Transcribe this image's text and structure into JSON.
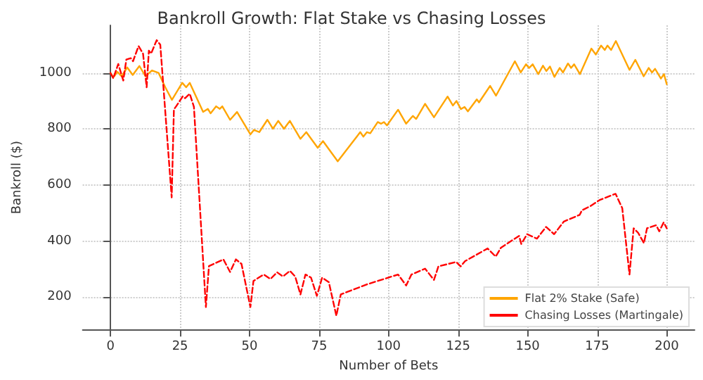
{
  "chart_data": {
    "type": "line",
    "title": "Bankroll Growth: Flat Stake vs Chasing Losses",
    "xlabel": "Number of Bets",
    "ylabel": "Bankroll ($)",
    "xlim": [
      -10,
      210
    ],
    "xticks": [
      0,
      25,
      50,
      75,
      100,
      125,
      150,
      175,
      200
    ],
    "ylim": [
      85,
      1170
    ],
    "yticks": [
      200,
      400,
      600,
      800,
      1000
    ],
    "grid": true,
    "legend": "bottom right",
    "marker": "none",
    "series": [
      {
        "name": "Flat 2% Stake (Safe)",
        "color": "#ffa500",
        "line_style": "solid",
        "x": [
          0,
          1,
          2.5,
          4,
          6,
          8,
          10.4,
          12.6,
          14.9,
          17.3,
          19.7,
          22.1,
          25.8,
          27.2,
          28.5,
          33.3,
          35,
          36,
          38,
          39.3,
          40.2,
          43,
          45.5,
          50.3,
          51.6,
          53.5,
          56.4,
          58.4,
          60.3,
          62.4,
          64.5,
          68.3,
          70.4,
          74.5,
          76.4,
          81.7,
          89.8,
          90.9,
          92.2,
          93.4,
          96.1,
          97.3,
          98.3,
          99.4,
          103.4,
          106.3,
          108.7,
          109.9,
          113.1,
          116.3,
          121.2,
          123.1,
          124.4,
          126,
          127.3,
          128.5,
          131.7,
          132.5,
          136.5,
          138.6,
          145.4,
          147.5,
          149.4,
          150.5,
          151.8,
          153.8,
          155.5,
          156.7,
          158,
          159.6,
          161.5,
          162.7,
          164.5,
          165.6,
          166.7,
          168.8,
          172.9,
          174.5,
          176.4,
          177.7,
          178.7,
          180,
          181.7,
          186.6,
          188.7,
          191.7,
          193.5,
          194.7,
          195.8,
          197.9,
          199,
          200
        ],
        "values": [
          1000,
          984,
          1004,
          988,
          1020,
          993,
          1025,
          988,
          1009,
          1000,
          949,
          904,
          965,
          949,
          965,
          861,
          872,
          856,
          881,
          872,
          881,
          833,
          861,
          781,
          797,
          789,
          833,
          801,
          829,
          801,
          829,
          765,
          789,
          733,
          757,
          685,
          789,
          773,
          789,
          785,
          825,
          819,
          825,
          813,
          869,
          819,
          847,
          836,
          890,
          842,
          916,
          884,
          900,
          871,
          879,
          863,
          906,
          895,
          954,
          919,
          1042,
          1002,
          1031,
          1018,
          1031,
          996,
          1026,
          1007,
          1023,
          986,
          1018,
          1002,
          1034,
          1018,
          1031,
          996,
          1087,
          1066,
          1098,
          1082,
          1098,
          1082,
          1114,
          1011,
          1047,
          988,
          1018,
          1002,
          1015,
          980,
          996,
          960
        ]
      },
      {
        "name": "Chasing Losses (Martingale)",
        "color": "#ff0000",
        "line_style": "dashed",
        "x": [
          0,
          1,
          2.8,
          4.6,
          5.7,
          7.3,
          8.1,
          10.1,
          11.7,
          13,
          13.8,
          14.6,
          16.6,
          17.9,
          22,
          22.8,
          23.6,
          26,
          26.8,
          28.5,
          30,
          34.3,
          35.4,
          40.6,
          43,
          45.1,
          47.1,
          50.3,
          51.4,
          55.1,
          57.5,
          59.9,
          62,
          64.5,
          66.4,
          68.3,
          70.1,
          72.1,
          74.2,
          76.1,
          78.5,
          81.2,
          82.8,
          92.2,
          103.4,
          106.3,
          108.2,
          113.1,
          116.3,
          117.9,
          124.3,
          125.9,
          127.5,
          135.6,
          138.5,
          140.4,
          146.9,
          147.7,
          149.8,
          153.3,
          156.6,
          159.5,
          163,
          168.7,
          169.5,
          172.7,
          175.9,
          180,
          181.6,
          184,
          186.6,
          188.1,
          189.7,
          191.8,
          192.9,
          196.2,
          197.3,
          198.9,
          200
        ],
        "values": [
          1000,
          981,
          1032,
          973,
          1048,
          1053,
          1042,
          1096,
          1069,
          949,
          1080,
          1069,
          1117,
          1101,
          556,
          870,
          881,
          917,
          910,
          926,
          879,
          165,
          311,
          335,
          290,
          335,
          319,
          165,
          258,
          281,
          265,
          289,
          274,
          294,
          274,
          210,
          281,
          270,
          205,
          270,
          254,
          134,
          210,
          246,
          281,
          242,
          281,
          302,
          262,
          310,
          326,
          310,
          329,
          374,
          345,
          377,
          419,
          390,
          425,
          409,
          451,
          425,
          470,
          494,
          510,
          526,
          547,
          563,
          569,
          518,
          281,
          446,
          430,
          393,
          446,
          457,
          435,
          467,
          446
        ]
      }
    ]
  }
}
